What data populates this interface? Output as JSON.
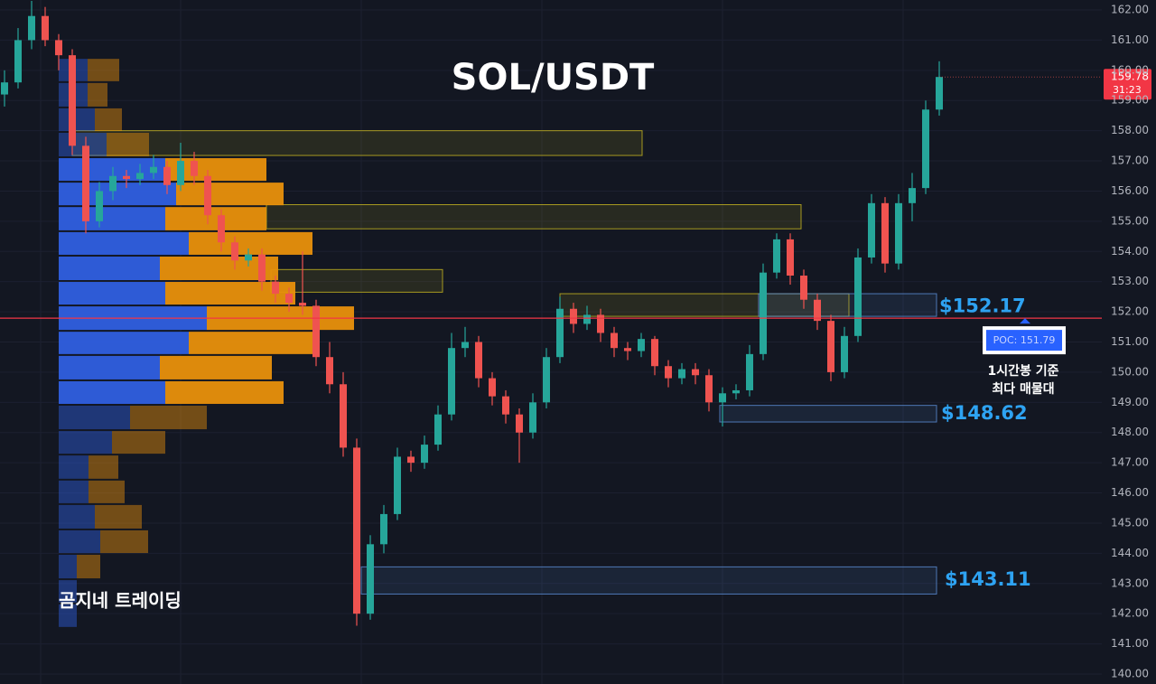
{
  "chart_data": {
    "type": "candlestick",
    "title": "SOL/USDT",
    "watermark": "곰지네 트레이딩",
    "annotation": [
      "1시간봉 기준",
      "최다 매물대"
    ],
    "ylim": [
      139.67,
      162.33
    ],
    "yticks": [
      {
        "value": 140,
        "label": "140.00"
      },
      {
        "value": 141,
        "label": "141.00"
      },
      {
        "value": 142,
        "label": "142.00"
      },
      {
        "value": 143,
        "label": "143.00"
      },
      {
        "value": 144,
        "label": "144.00"
      },
      {
        "value": 145,
        "label": "145.00"
      },
      {
        "value": 146,
        "label": "146.00"
      },
      {
        "value": 147,
        "label": "147.00"
      },
      {
        "value": 148,
        "label": "148.00"
      },
      {
        "value": 149,
        "label": "149.00"
      },
      {
        "value": 150,
        "label": "150.00"
      },
      {
        "value": 151,
        "label": "151.00"
      },
      {
        "value": 152,
        "label": "152.00"
      },
      {
        "value": 153,
        "label": "153.00"
      },
      {
        "value": 154,
        "label": "154.00"
      },
      {
        "value": 155,
        "label": "155.00"
      },
      {
        "value": 156,
        "label": "156.00"
      },
      {
        "value": 157,
        "label": "157.00"
      },
      {
        "value": 158,
        "label": "158.00"
      },
      {
        "value": 159,
        "label": "159.00"
      },
      {
        "value": 160,
        "label": "160.00"
      },
      {
        "value": 161,
        "label": "161.00"
      },
      {
        "value": 162,
        "label": "162.00"
      }
    ],
    "grid": true,
    "up_color": "#26a69a",
    "down_color": "#ef5350",
    "open": [
      159.2,
      159.6,
      161.0,
      161.8,
      161.0,
      160.5,
      157.5,
      155.0,
      156.0,
      156.5,
      156.4,
      156.6,
      156.8,
      156.2,
      157.0,
      156.5,
      155.2,
      154.3,
      153.7,
      153.9,
      153.0,
      152.6,
      152.3,
      152.2,
      150.5,
      149.6,
      147.5,
      142.0,
      144.3,
      145.3,
      147.2,
      147.0,
      147.6,
      148.6,
      150.8,
      151.0,
      149.8,
      149.2,
      148.6,
      148.0,
      149.0,
      150.5,
      152.1,
      151.6,
      151.9,
      151.3,
      150.8,
      150.7,
      151.1,
      150.2,
      149.8,
      150.1,
      149.9,
      149.0,
      149.3,
      149.4,
      150.6,
      153.3,
      154.4,
      153.2,
      152.4,
      151.7,
      150.0,
      151.2,
      153.8,
      155.6,
      153.6,
      155.6,
      156.1,
      158.7
    ],
    "high": [
      160.0,
      161.4,
      162.3,
      162.1,
      161.2,
      160.7,
      157.8,
      156.3,
      156.8,
      156.7,
      156.9,
      157.2,
      157.0,
      157.6,
      157.3,
      156.7,
      155.4,
      154.5,
      154.1,
      154.1,
      153.2,
      152.8,
      154.0,
      152.4,
      151.0,
      150.0,
      147.8,
      144.6,
      145.6,
      147.5,
      147.4,
      147.9,
      148.9,
      151.3,
      151.5,
      151.2,
      150.0,
      149.4,
      148.8,
      149.3,
      150.8,
      152.5,
      152.3,
      152.2,
      152.1,
      151.5,
      151.0,
      151.3,
      151.2,
      150.4,
      150.3,
      150.3,
      150.1,
      149.5,
      149.6,
      150.9,
      153.6,
      154.6,
      154.6,
      153.4,
      152.6,
      151.9,
      151.5,
      154.1,
      155.9,
      155.8,
      155.9,
      156.6,
      159.0,
      160.3
    ],
    "low": [
      158.8,
      159.4,
      160.7,
      160.8,
      160.0,
      157.2,
      154.6,
      154.8,
      155.7,
      156.1,
      156.2,
      156.4,
      155.9,
      156.0,
      156.2,
      154.9,
      154.0,
      153.4,
      153.5,
      152.7,
      152.3,
      152.0,
      151.9,
      150.2,
      149.3,
      147.2,
      141.6,
      141.8,
      144.0,
      145.1,
      146.7,
      146.8,
      147.4,
      148.4,
      150.5,
      149.5,
      148.9,
      148.3,
      147.0,
      147.8,
      148.8,
      150.3,
      151.3,
      151.4,
      151.0,
      150.5,
      150.4,
      150.5,
      149.9,
      149.5,
      149.6,
      149.6,
      148.7,
      148.2,
      149.1,
      149.2,
      150.4,
      153.1,
      152.9,
      152.1,
      151.4,
      149.7,
      149.8,
      151.0,
      153.6,
      153.3,
      153.4,
      155.0,
      155.9,
      158.5
    ],
    "close": [
      159.6,
      161.0,
      161.8,
      161.0,
      160.5,
      157.5,
      155.0,
      156.0,
      156.5,
      156.4,
      156.6,
      156.8,
      156.2,
      157.0,
      156.5,
      155.2,
      154.3,
      153.7,
      153.9,
      153.0,
      152.6,
      152.3,
      152.2,
      150.5,
      149.6,
      147.5,
      142.0,
      144.3,
      145.3,
      147.2,
      147.0,
      147.6,
      148.6,
      150.8,
      151.0,
      149.8,
      149.2,
      148.6,
      148.0,
      149.0,
      150.5,
      152.1,
      151.6,
      151.9,
      151.3,
      150.8,
      150.7,
      151.1,
      150.2,
      149.8,
      150.1,
      149.9,
      149.0,
      149.3,
      149.4,
      150.6,
      153.3,
      154.4,
      153.2,
      152.4,
      151.7,
      150.0,
      151.2,
      153.8,
      155.6,
      153.6,
      155.6,
      156.1,
      158.7,
      159.78
    ],
    "last_price": {
      "value": 159.78,
      "label": "159.78"
    },
    "countdown": "31:23",
    "profile": {
      "bins": [
        160.41,
        159.61,
        158.77,
        157.96,
        157.12,
        156.31,
        155.5,
        154.67,
        153.86,
        153.02,
        152.21,
        151.37,
        150.57,
        149.73,
        148.92,
        148.08,
        147.27,
        146.44,
        145.63,
        144.79,
        143.98,
        143.14,
        142.34,
        141.53
      ],
      "buy": [
        32,
        32,
        40,
        53,
        118,
        130,
        118,
        144,
        112,
        118,
        164,
        144,
        112,
        118,
        79,
        59,
        33,
        33,
        40,
        46,
        20,
        20,
        20
      ],
      "sell": [
        35,
        22,
        30,
        47,
        112,
        119,
        112,
        137,
        131,
        144,
        163,
        137,
        124,
        131,
        85,
        59,
        33,
        40,
        52,
        53,
        26,
        0,
        0
      ],
      "buy_color": "#2f5fe0",
      "sell_color": "#e8900c",
      "value_area": [
        148.92,
        157.12
      ]
    },
    "poc": {
      "value": 151.79,
      "label": "POC: 151.79",
      "color": "#f23645"
    },
    "zones": [
      {
        "low": 157.18,
        "high": 158.0,
        "color": "#c8b820"
      },
      {
        "low": 154.75,
        "high": 155.55,
        "color": "#c8b820"
      },
      {
        "low": 152.65,
        "high": 153.4,
        "color": "#c8b820"
      },
      {
        "low": 151.85,
        "high": 152.6,
        "color": "#c8b820"
      },
      {
        "low": 151.85,
        "high": 152.6,
        "color": "#5b8fd8"
      },
      {
        "low": 148.35,
        "high": 148.9,
        "color": "#5b8fd8"
      },
      {
        "low": 142.65,
        "high": 143.55,
        "color": "#5b8fd8"
      }
    ],
    "levels": [
      {
        "value": 152.17,
        "label": "$152.17"
      },
      {
        "value": 148.62,
        "label": "$148.62"
      },
      {
        "value": 143.11,
        "label": "$143.11"
      }
    ],
    "level_color": "#2ea3f2"
  }
}
